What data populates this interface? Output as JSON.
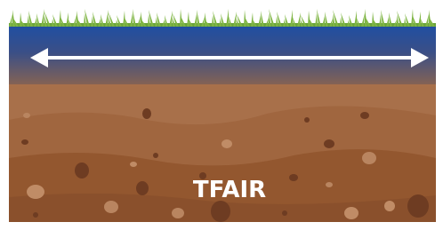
{
  "label": "TFAIR"
}
